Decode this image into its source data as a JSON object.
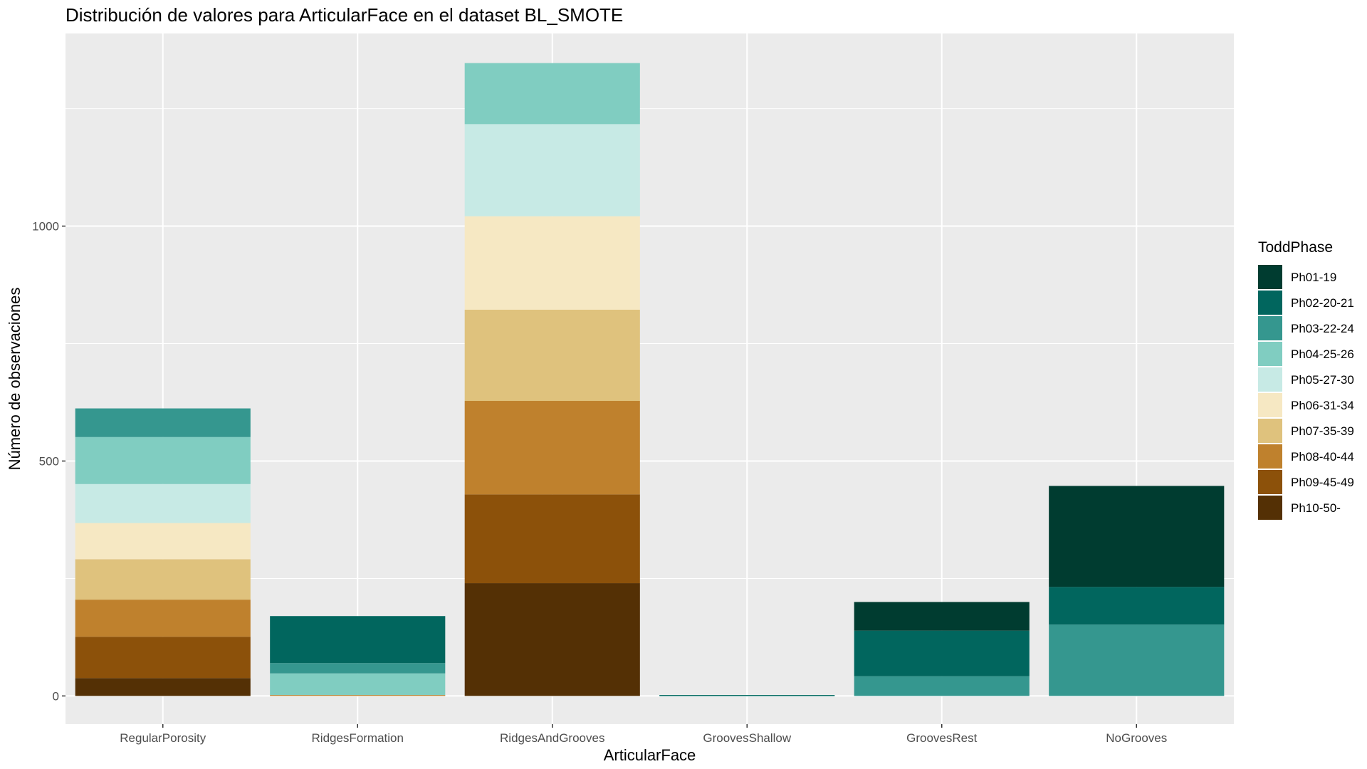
{
  "chart_data": {
    "type": "bar",
    "stacked": true,
    "title": "Distribución de valores para ArticularFace en el dataset BL_SMOTE",
    "xlabel": "ArticularFace",
    "ylabel": "Número de observaciones",
    "categories": [
      "RegularPorosity",
      "RidgesFormation",
      "RidgesAndGrooves",
      "GroovesShallow",
      "GroovesRest",
      "NoGrooves"
    ],
    "ylim": [
      -60,
      1410
    ],
    "yticks": [
      0,
      500,
      1000
    ],
    "grid": true,
    "legend_title": "ToddPhase",
    "legend_position": "right",
    "background_color": "#ebebeb",
    "series": [
      {
        "name": "Ph01-19",
        "color": "#003c30",
        "values": [
          0,
          0,
          0,
          0,
          61,
          215
        ]
      },
      {
        "name": "Ph02-20-21",
        "color": "#01665e",
        "values": [
          0,
          100,
          0,
          1,
          97,
          80
        ]
      },
      {
        "name": "Ph03-22-24",
        "color": "#35978f",
        "values": [
          61,
          22,
          0,
          1,
          42,
          152
        ]
      },
      {
        "name": "Ph04-25-26",
        "color": "#80cdc1",
        "values": [
          100,
          46,
          130,
          0,
          0,
          0
        ]
      },
      {
        "name": "Ph05-27-30",
        "color": "#c7eae5",
        "values": [
          83,
          0,
          196,
          0,
          0,
          0
        ]
      },
      {
        "name": "Ph06-31-34",
        "color": "#f6e8c3",
        "values": [
          77,
          0,
          199,
          0,
          0,
          0
        ]
      },
      {
        "name": "Ph07-35-39",
        "color": "#dfc27d",
        "values": [
          86,
          0,
          194,
          0,
          0,
          0
        ]
      },
      {
        "name": "Ph08-40-44",
        "color": "#bf812d",
        "values": [
          79,
          2,
          199,
          0,
          0,
          0
        ]
      },
      {
        "name": "Ph09-45-49",
        "color": "#8c510a",
        "values": [
          88,
          0,
          189,
          0,
          0,
          0
        ]
      },
      {
        "name": "Ph10-50-",
        "color": "#543005",
        "values": [
          38,
          0,
          240,
          0,
          0,
          0
        ]
      }
    ]
  }
}
